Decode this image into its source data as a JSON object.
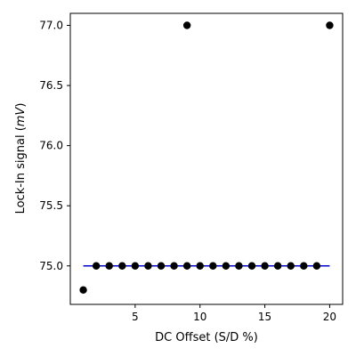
{
  "chart_data": {
    "type": "scatter",
    "title": "",
    "xlabel": "DC Offset (S/D %)",
    "ylabel_prefix": "Lock-In signal (",
    "ylabel_unit": "mV",
    "ylabel_suffix": ")",
    "xlim": [
      0.0,
      21.0
    ],
    "ylim": [
      74.68,
      77.1
    ],
    "x_ticks": [
      5,
      10,
      15,
      20
    ],
    "y_ticks": [
      75.0,
      75.5,
      76.0,
      76.5,
      77.0
    ],
    "x_tick_labels": [
      "5",
      "10",
      "15",
      "20"
    ],
    "y_tick_labels": [
      "75.0",
      "75.5",
      "76.0",
      "76.5",
      "77.0"
    ],
    "grid": false,
    "series": [
      {
        "marker": "circle",
        "color": "#000000",
        "x": [
          1,
          2,
          3,
          4,
          5,
          6,
          7,
          8,
          9,
          9,
          10,
          11,
          12,
          13,
          14,
          15,
          16,
          17,
          18,
          19,
          20
        ],
        "y": [
          74.8,
          75.0,
          75.0,
          75.0,
          75.0,
          75.0,
          75.0,
          75.0,
          75.0,
          77.0,
          75.0,
          75.0,
          75.0,
          75.0,
          75.0,
          75.0,
          75.0,
          75.0,
          75.0,
          75.0,
          77.0
        ]
      }
    ],
    "reference_line": {
      "y": 75.0,
      "x_range": [
        1,
        20
      ],
      "color": "#0000cc"
    }
  }
}
